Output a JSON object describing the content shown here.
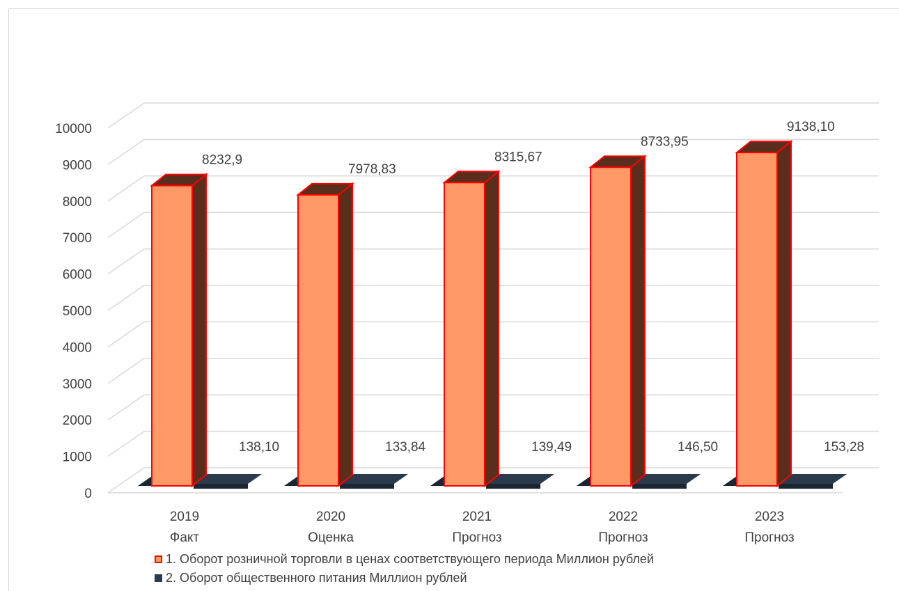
{
  "chart_data": {
    "type": "bar",
    "style": "3d-clustered-column",
    "categories": [
      [
        "2019",
        "Факт"
      ],
      [
        "2020",
        "Оценка"
      ],
      [
        "2021",
        "Прогноз"
      ],
      [
        "2022",
        "Прогноз"
      ],
      [
        "2023",
        "Прогноз"
      ]
    ],
    "series": [
      {
        "name": "1. Оборот розничной торговли в ценах соответствующего периода Миллион рублей",
        "values": [
          8232.9,
          7978.83,
          8315.67,
          8733.95,
          9138.1
        ],
        "labels": [
          "8232,9",
          "7978,83",
          "8315,67",
          "8733,95",
          "9138,10"
        ],
        "color": "#ff9966",
        "side_color": "#5a2e1c",
        "edge_color": "#ff0000"
      },
      {
        "name": "2. Оборот общественного питания Миллион рублей",
        "values": [
          138.1,
          133.84,
          139.49,
          146.5,
          153.28
        ],
        "labels": [
          "138,10",
          "133,84",
          "139,49",
          "146,50",
          "153,28"
        ],
        "color": "#2b3a4c",
        "side_color": "#1c2633",
        "edge_color": "#2b3a4c"
      }
    ],
    "yticks": [
      "0",
      "1000",
      "2000",
      "3000",
      "4000",
      "5000",
      "6000",
      "7000",
      "8000",
      "9000",
      "10000"
    ],
    "ylim": [
      0,
      10000
    ],
    "grid": true,
    "legend_position": "bottom"
  }
}
